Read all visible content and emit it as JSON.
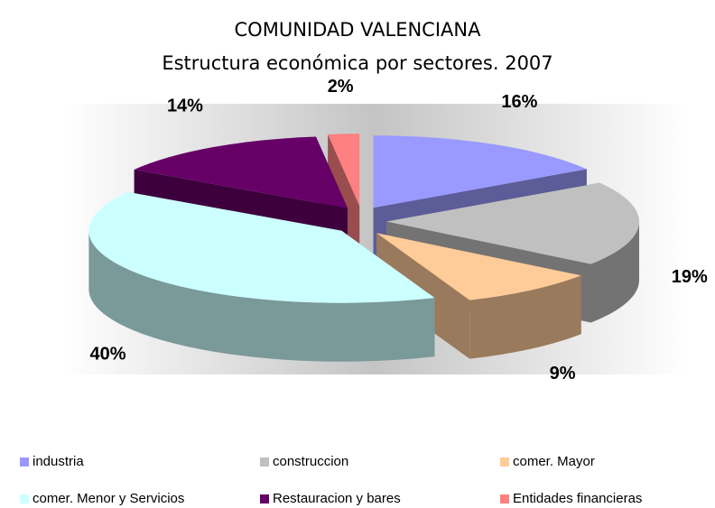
{
  "chart_data": {
    "type": "pie3d",
    "title": "COMUNIDAD VALENCIANA",
    "subtitle": "Estructura económica por sectores. 2007",
    "categories": [
      "industria",
      "construccion",
      "comer. Mayor",
      "comer. Menor y Servicios",
      "Restauracion y bares",
      "Entidades financieras"
    ],
    "values": [
      16,
      19,
      9,
      40,
      14,
      2
    ],
    "value_labels": [
      "16%",
      "19%",
      "9%",
      "40%",
      "14%",
      "2%"
    ],
    "colors": [
      "#9999ff",
      "#c0c0c0",
      "#ffcc99",
      "#ccffff",
      "#660066",
      "#ff8080"
    ],
    "legend": "bottom"
  }
}
